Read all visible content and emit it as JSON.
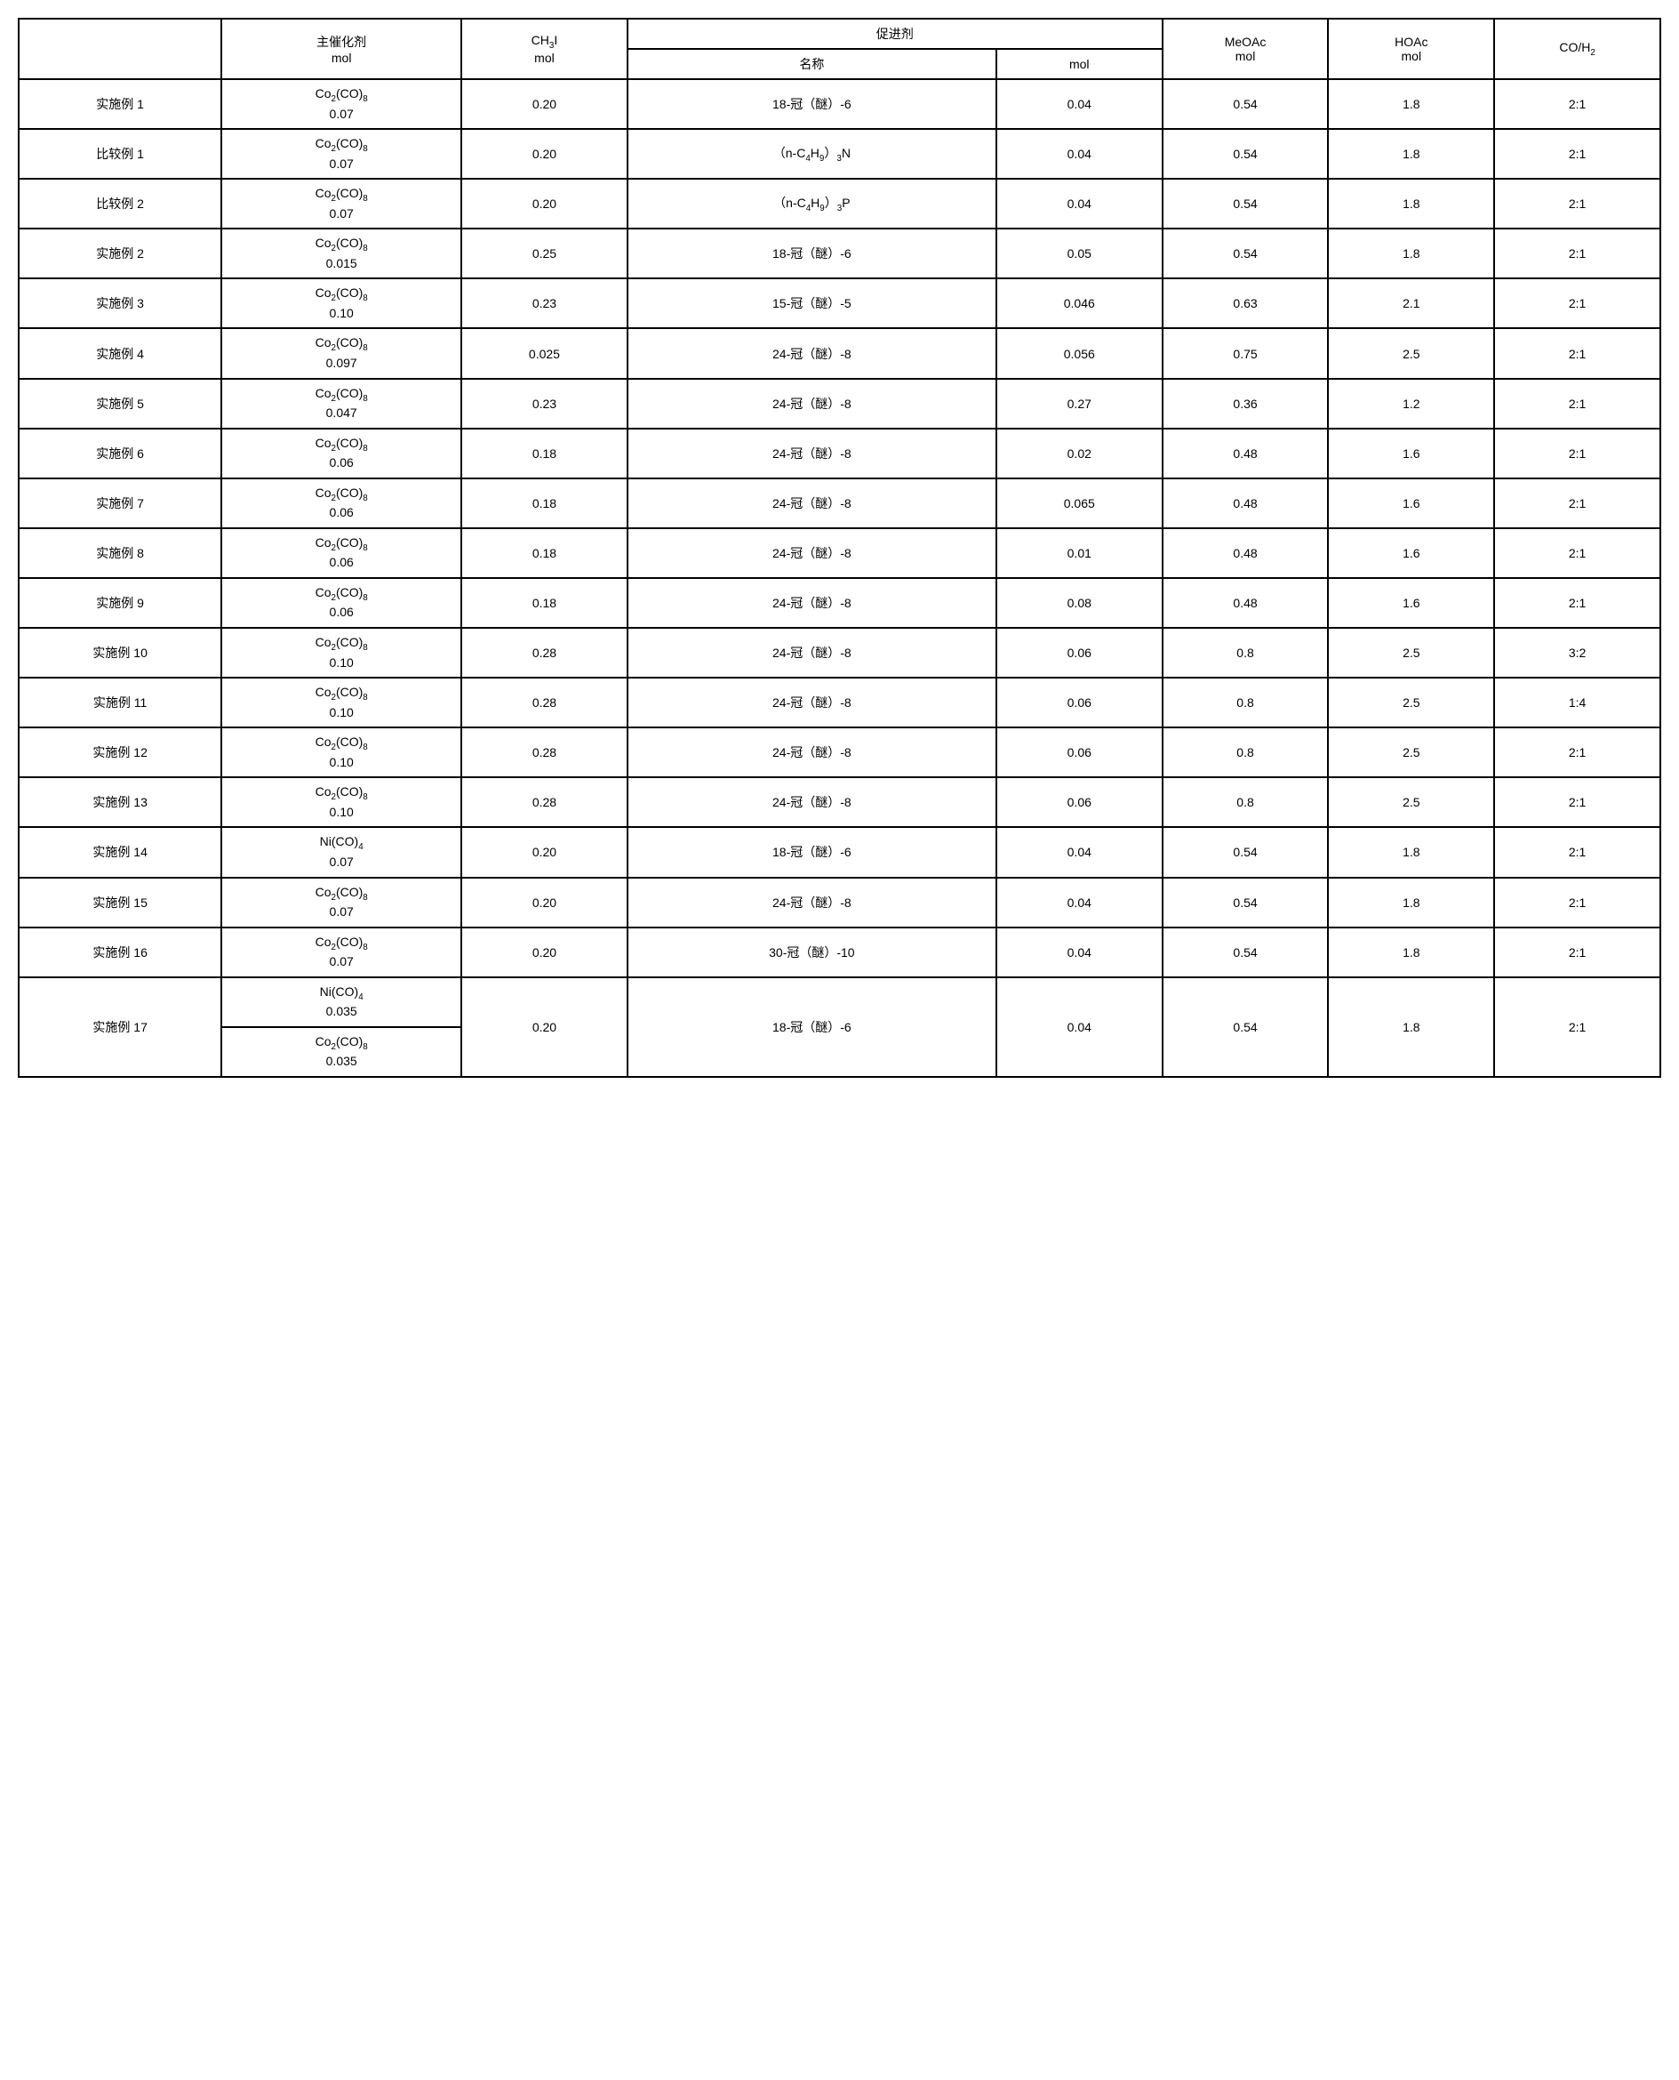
{
  "headers": {
    "catalyst": "主催化剂\nmol",
    "ch3i": "CH₃I\nmol",
    "promoter_group": "促进剂",
    "promoter_name": "名称",
    "promoter_mol": "mol",
    "meoac": "MeOAc\nmol",
    "hoac": "HOAc\nmol",
    "co_h2": "CO/H₂"
  },
  "rows": [
    {
      "label": "实施例 1",
      "catalyst": "Co₂(CO)₈\n0.07",
      "ch3i": "0.20",
      "prom_name": "18-冠（醚）-6",
      "prom_mol": "0.04",
      "meoac": "0.54",
      "hoac": "1.8",
      "co_h2": "2:1"
    },
    {
      "label": "比较例 1",
      "catalyst": "Co₂(CO)₈\n0.07",
      "ch3i": "0.20",
      "prom_name": "（n-C₄H₉）₃N",
      "prom_mol": "0.04",
      "meoac": "0.54",
      "hoac": "1.8",
      "co_h2": "2:1"
    },
    {
      "label": "比较例 2",
      "catalyst": "Co₂(CO)₈\n0.07",
      "ch3i": "0.20",
      "prom_name": "（n-C₄H₉）₃P",
      "prom_mol": "0.04",
      "meoac": "0.54",
      "hoac": "1.8",
      "co_h2": "2:1"
    },
    {
      "label": "实施例 2",
      "catalyst": "Co₂(CO)₈\n0.015",
      "ch3i": "0.25",
      "prom_name": "18-冠（醚）-6",
      "prom_mol": "0.05",
      "meoac": "0.54",
      "hoac": "1.8",
      "co_h2": "2:1"
    },
    {
      "label": "实施例 3",
      "catalyst": "Co₂(CO)₈\n0.10",
      "ch3i": "0.23",
      "prom_name": "15-冠（醚）-5",
      "prom_mol": "0.046",
      "meoac": "0.63",
      "hoac": "2.1",
      "co_h2": "2:1"
    },
    {
      "label": "实施例 4",
      "catalyst": "Co₂(CO)₈\n0.097",
      "ch3i": "0.025",
      "prom_name": "24-冠（醚）-8",
      "prom_mol": "0.056",
      "meoac": "0.75",
      "hoac": "2.5",
      "co_h2": "2:1"
    },
    {
      "label": "实施例 5",
      "catalyst": "Co₂(CO)₈\n0.047",
      "ch3i": "0.23",
      "prom_name": "24-冠（醚）-8",
      "prom_mol": "0.27",
      "meoac": "0.36",
      "hoac": "1.2",
      "co_h2": "2:1"
    },
    {
      "label": "实施例 6",
      "catalyst": "Co₂(CO)₈\n0.06",
      "ch3i": "0.18",
      "prom_name": "24-冠（醚）-8",
      "prom_mol": "0.02",
      "meoac": "0.48",
      "hoac": "1.6",
      "co_h2": "2:1"
    },
    {
      "label": "实施例 7",
      "catalyst": "Co₂(CO)₈\n0.06",
      "ch3i": "0.18",
      "prom_name": "24-冠（醚）-8",
      "prom_mol": "0.065",
      "meoac": "0.48",
      "hoac": "1.6",
      "co_h2": "2:1"
    },
    {
      "label": "实施例 8",
      "catalyst": "Co₂(CO)₈\n0.06",
      "ch3i": "0.18",
      "prom_name": "24-冠（醚）-8",
      "prom_mol": "0.01",
      "meoac": "0.48",
      "hoac": "1.6",
      "co_h2": "2:1"
    },
    {
      "label": "实施例 9",
      "catalyst": "Co₂(CO)₈\n0.06",
      "ch3i": "0.18",
      "prom_name": "24-冠（醚）-8",
      "prom_mol": "0.08",
      "meoac": "0.48",
      "hoac": "1.6",
      "co_h2": "2:1"
    },
    {
      "label": "实施例 10",
      "catalyst": "Co₂(CO)₈\n0.10",
      "ch3i": "0.28",
      "prom_name": "24-冠（醚）-8",
      "prom_mol": "0.06",
      "meoac": "0.8",
      "hoac": "2.5",
      "co_h2": "3:2"
    },
    {
      "label": "实施例 11",
      "catalyst": "Co₂(CO)₈\n0.10",
      "ch3i": "0.28",
      "prom_name": "24-冠（醚）-8",
      "prom_mol": "0.06",
      "meoac": "0.8",
      "hoac": "2.5",
      "co_h2": "1:4"
    },
    {
      "label": "实施例 12",
      "catalyst": "Co₂(CO)₈\n0.10",
      "ch3i": "0.28",
      "prom_name": "24-冠（醚）-8",
      "prom_mol": "0.06",
      "meoac": "0.8",
      "hoac": "2.5",
      "co_h2": "2:1"
    },
    {
      "label": "实施例 13",
      "catalyst": "Co₂(CO)₈\n0.10",
      "ch3i": "0.28",
      "prom_name": "24-冠（醚）-8",
      "prom_mol": "0.06",
      "meoac": "0.8",
      "hoac": "2.5",
      "co_h2": "2:1"
    },
    {
      "label": "实施例 14",
      "catalyst": "Ni(CO)₄\n0.07",
      "ch3i": "0.20",
      "prom_name": "18-冠（醚）-6",
      "prom_mol": "0.04",
      "meoac": "0.54",
      "hoac": "1.8",
      "co_h2": "2:1"
    },
    {
      "label": "实施例 15",
      "catalyst": "Co₂(CO)₈\n0.07",
      "ch3i": "0.20",
      "prom_name": "24-冠（醚）-8",
      "prom_mol": "0.04",
      "meoac": "0.54",
      "hoac": "1.8",
      "co_h2": "2:1"
    },
    {
      "label": "实施例 16",
      "catalyst": "Co₂(CO)₈\n0.07",
      "ch3i": "0.20",
      "prom_name": "30-冠（醚）-10",
      "prom_mol": "0.04",
      "meoac": "0.54",
      "hoac": "1.8",
      "co_h2": "2:1"
    }
  ],
  "row17": {
    "label": "实施例 17",
    "catalyst_a": "Ni(CO)₄\n0.035",
    "catalyst_b": "Co₂(CO)₈\n0.035",
    "ch3i": "0.20",
    "prom_name": "18-冠（醚）-6",
    "prom_mol": "0.04",
    "meoac": "0.54",
    "hoac": "1.8",
    "co_h2": "2:1"
  },
  "style": {
    "border_color": "#000000",
    "background": "#ffffff",
    "font_size": 14,
    "font_family": "SimSun"
  }
}
